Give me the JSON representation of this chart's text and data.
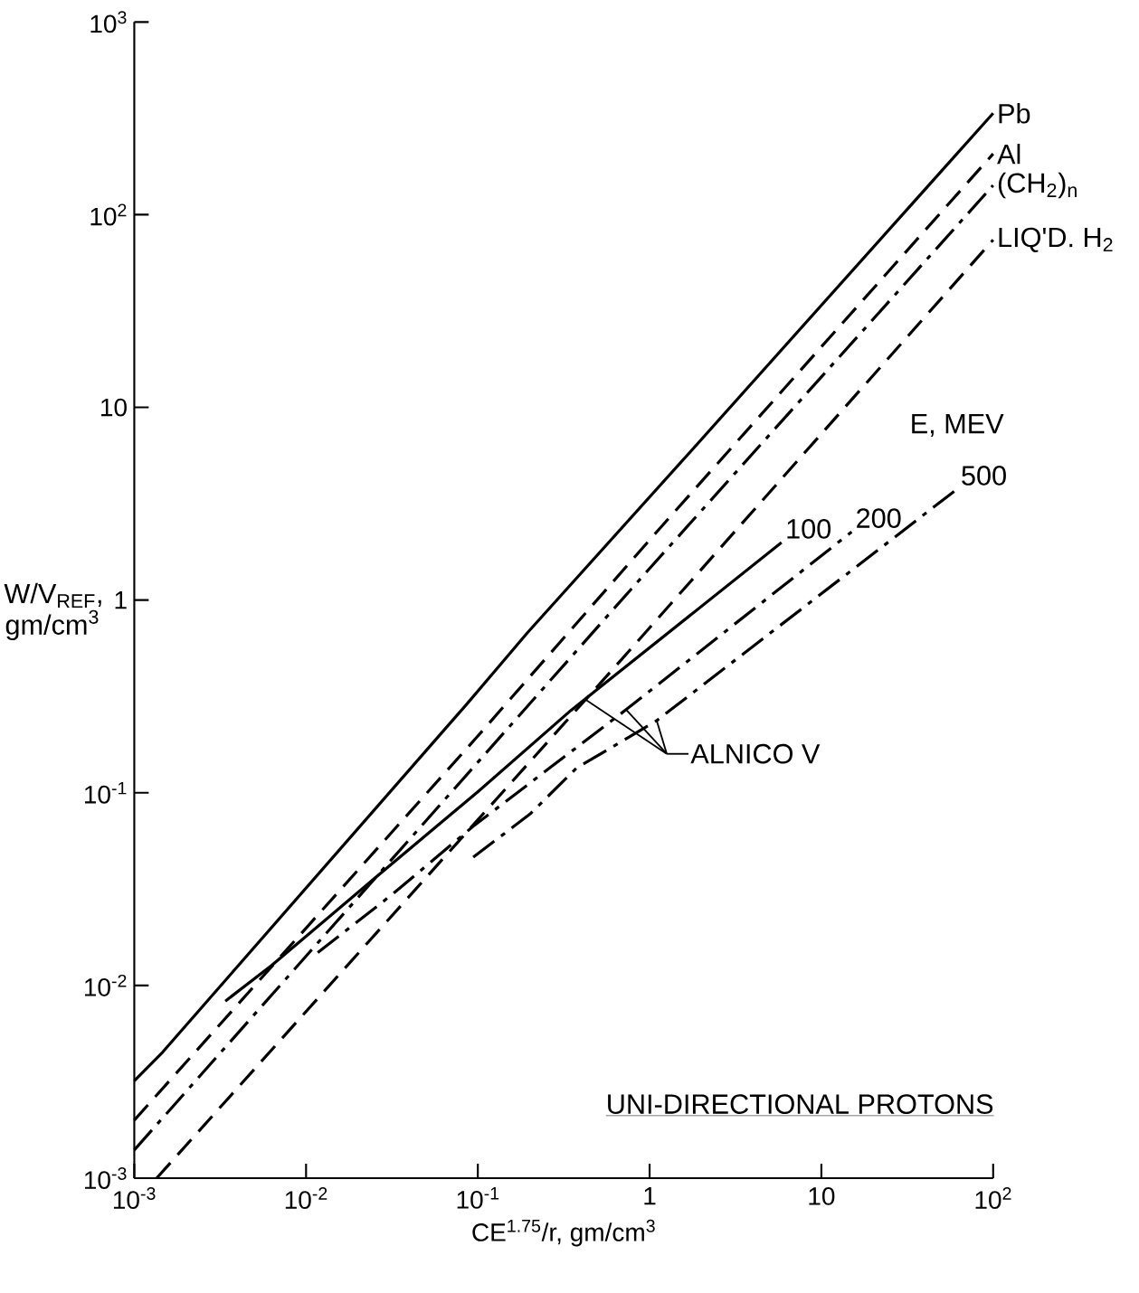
{
  "chart_data": {
    "type": "line",
    "xlabel": "CE$^{1.75}$/r, gm/cm$^{3}$",
    "ylabel": "W/V$_{REF}$, gm/cm$^{3}$",
    "log": "xy",
    "xlim": [
      0.001,
      100
    ],
    "ylim": [
      0.001,
      1000
    ],
    "xticks": [
      {
        "value": 0.001,
        "label": "10$^{-3}$"
      },
      {
        "value": 0.01,
        "label": "10$^{-2}$"
      },
      {
        "value": 0.1,
        "label": "10$^{-1}$"
      },
      1,
      10,
      {
        "value": 100,
        "label": "10$^{2}$"
      }
    ],
    "yticks": [
      {
        "value": 0.001,
        "label": "10$^{-3}$"
      },
      {
        "value": 0.01,
        "label": "10$^{-2}$"
      },
      {
        "value": 0.1,
        "label": "10$^{-1}$"
      },
      1,
      10,
      {
        "value": 100,
        "label": "10$^{2}$"
      },
      {
        "value": 1000,
        "label": "10$^{3}$"
      }
    ],
    "grid": false,
    "legend": false,
    "series": [
      {
        "name": "Pb",
        "color": "#000000",
        "line_style": "solid",
        "x": [
          0.001,
          0.00146,
          0.0861,
          0.194,
          1.66,
          100
        ],
        "values": [
          0.0032,
          0.0045,
          0.288,
          0.675,
          5.66,
          336
        ]
      },
      {
        "name": "Al",
        "color": "#000000",
        "line_style": "dashed",
        "x": [
          0.001,
          0.1,
          1.1,
          100
        ],
        "values": [
          0.002,
          0.197,
          2.26,
          207
        ]
      },
      {
        "name": "(CH$_{2}$)$_{n}$",
        "color": "#000000",
        "line_style": "dashdot",
        "x": [
          0.001,
          0.877,
          100
        ],
        "values": [
          0.0014,
          1.28,
          142
        ]
      },
      {
        "name": "LIQ'D. H$_{2}$",
        "color": "#000000",
        "line_style": "dashed",
        "x": [
          0.00135,
          0.67,
          100
        ],
        "values": [
          0.001,
          0.48,
          74
        ]
      },
      {
        "name": "100",
        "color": "#000000",
        "line_style": "solid",
        "x": [
          0.00339,
          0.0063,
          0.0252,
          0.101,
          0.347,
          5.86
        ],
        "values": [
          0.0083,
          0.0127,
          0.0361,
          0.102,
          0.267,
          1.99
        ]
      },
      {
        "name": "200",
        "color": "#000000",
        "line_style": "dashdot",
        "x": [
          0.0117,
          0.0319,
          0.094,
          0.73,
          15.0
        ],
        "values": [
          0.0148,
          0.0298,
          0.067,
          0.27,
          2.26
        ]
      },
      {
        "name": "500",
        "color": "#000000",
        "line_style": "dashdot",
        "x": [
          0.094,
          0.202,
          0.374,
          1.1,
          61.5
        ],
        "values": [
          0.0463,
          0.0778,
          0.134,
          0.237,
          3.76
        ]
      }
    ],
    "annotations": [
      "E, MEV",
      {
        "text": "ALNICO V",
        "x": 0.73,
        "y": 0.27
      },
      "UNI-DIRECTIONAL PROTONS"
    ]
  }
}
